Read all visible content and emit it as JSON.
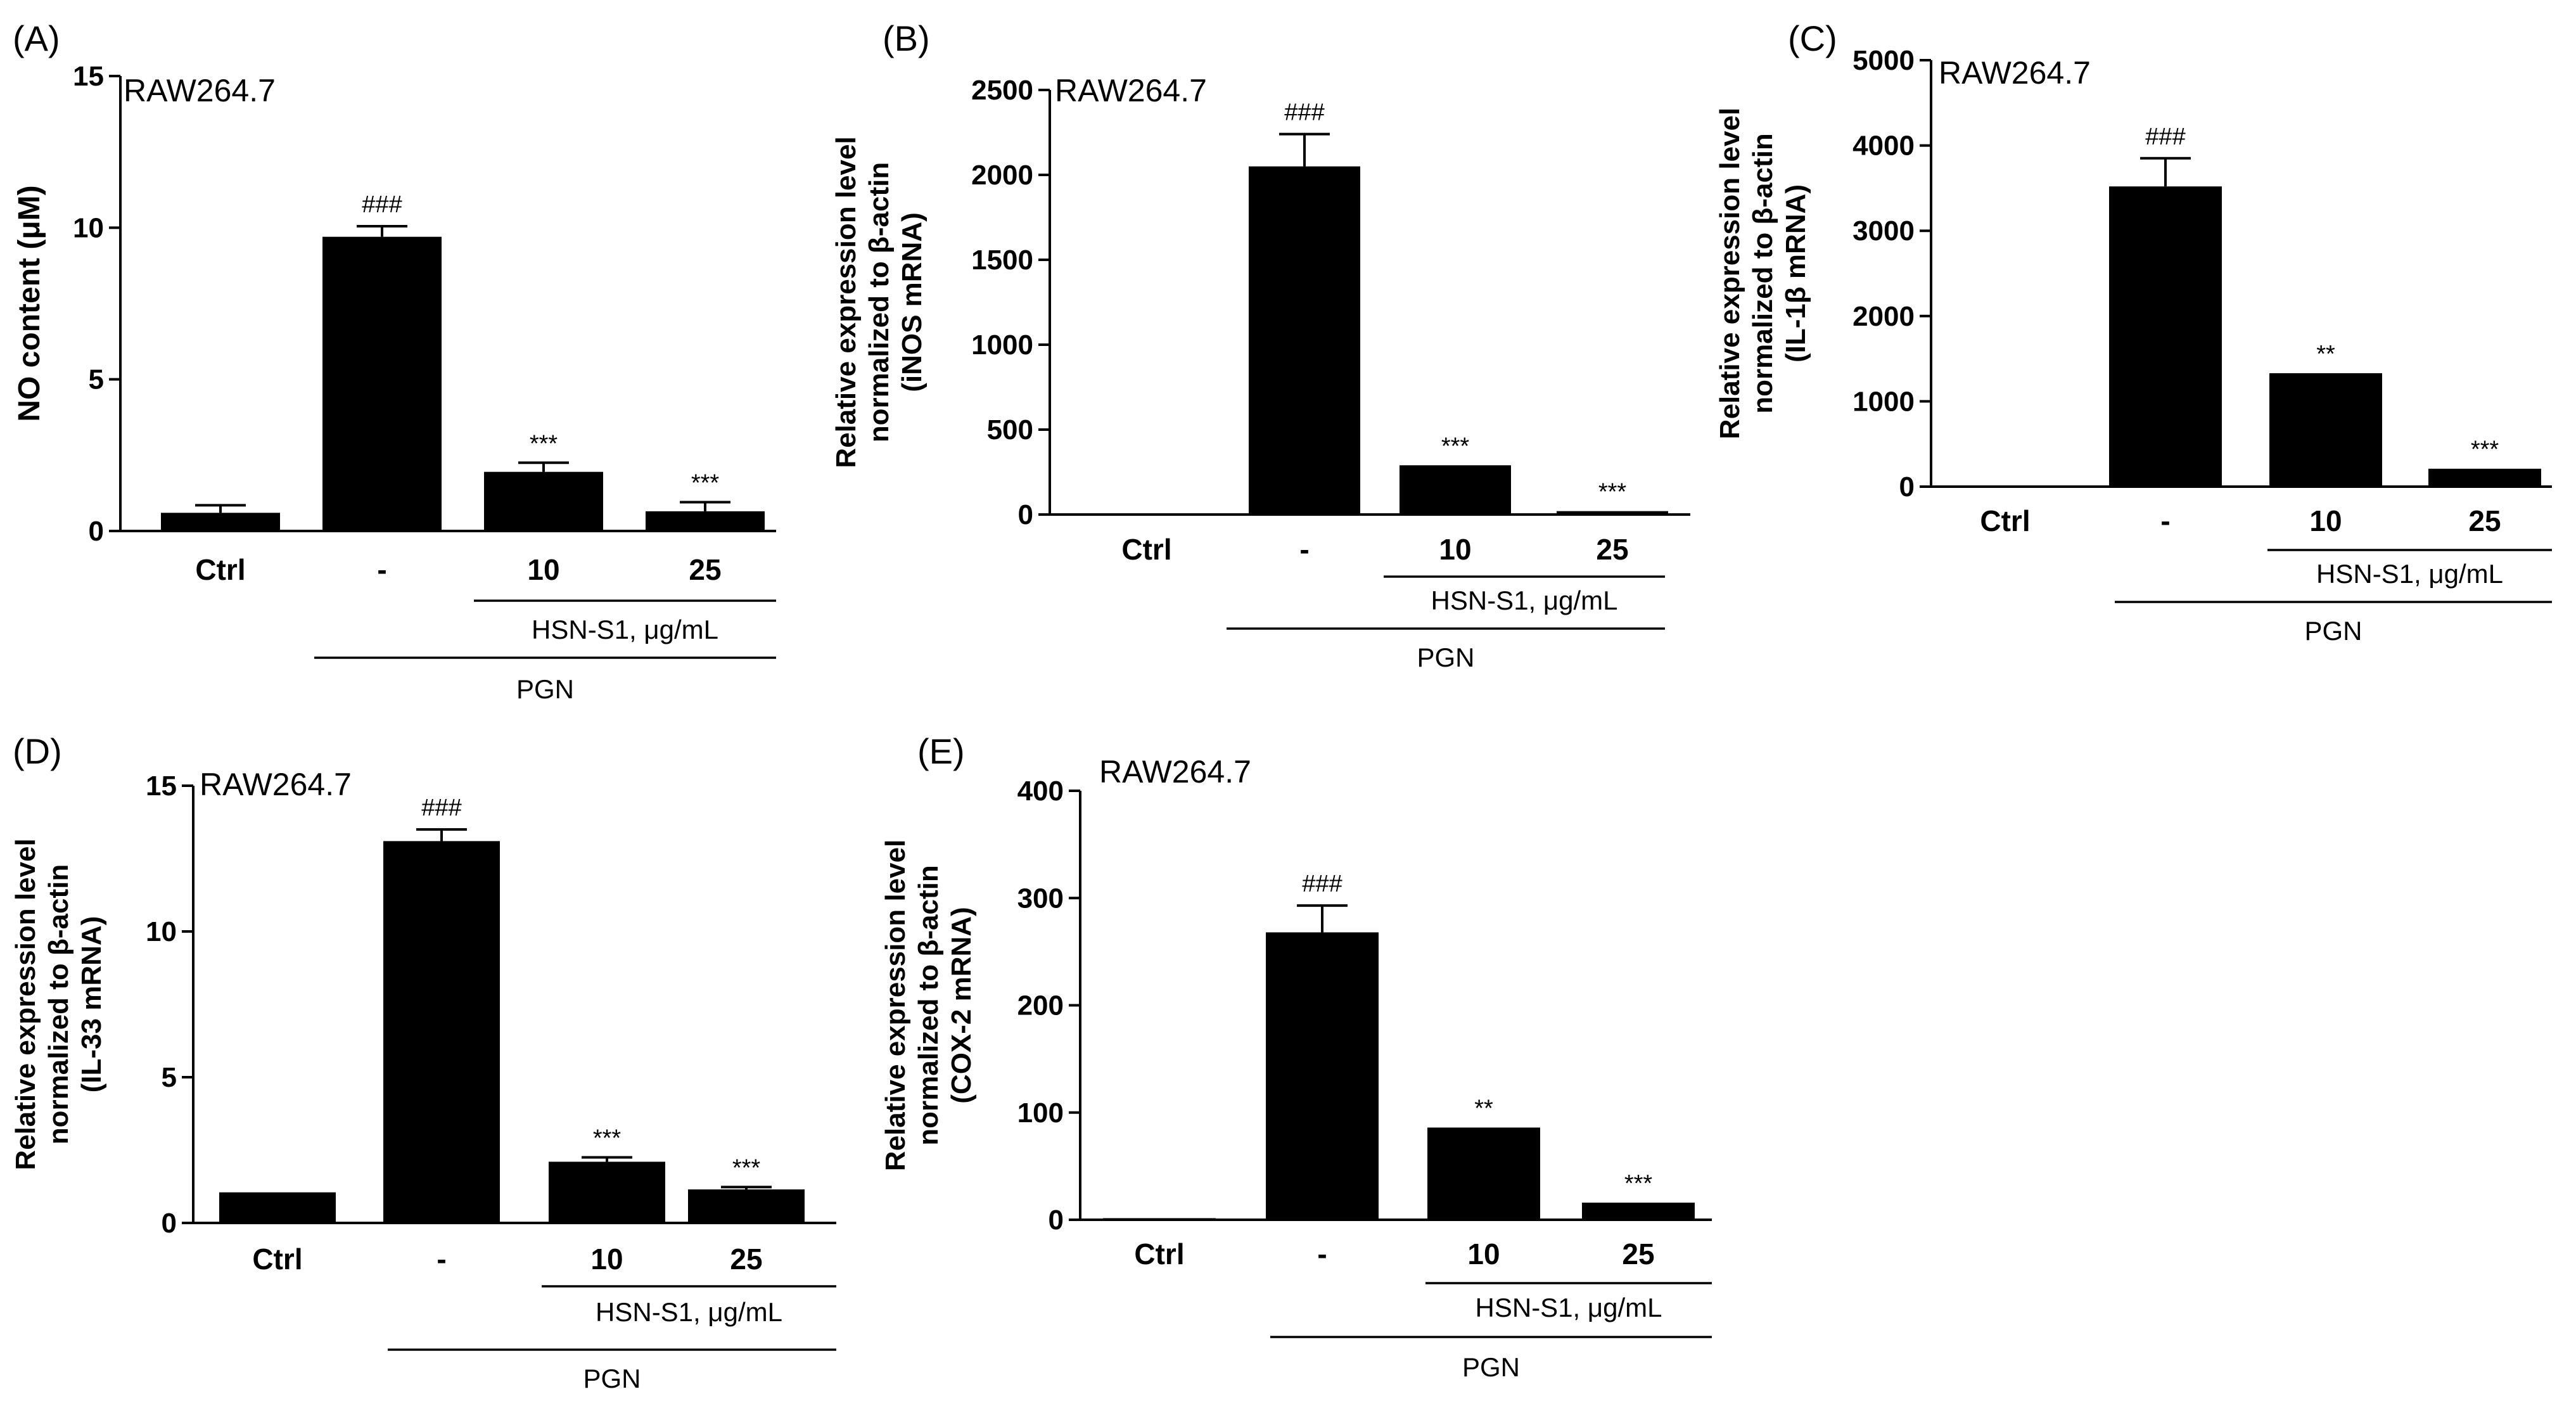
{
  "chart_data": [
    {
      "type": "bar",
      "panel": "(A)",
      "cell_line": "RAW264.7",
      "ylabel": "NO content (μM)",
      "ylim": [
        0,
        15
      ],
      "yticks": [
        "0",
        "5",
        "10",
        "15"
      ],
      "categories": [
        "Ctrl",
        "-",
        "10",
        "25"
      ],
      "values": [
        0.6,
        9.7,
        1.95,
        0.65
      ],
      "errors": [
        0.25,
        0.35,
        0.3,
        0.3
      ],
      "significance": [
        "",
        "###",
        "***",
        "***"
      ],
      "group_labels": {
        "treatment": "HSN-S1, μg/mL",
        "stimulus": "PGN"
      }
    },
    {
      "type": "bar",
      "panel": "(B)",
      "cell_line": "RAW264.7",
      "ylabel": [
        "Relative expression level",
        "normalized to β-actin",
        "(iNOS mRNA)"
      ],
      "ylim": [
        0,
        2500
      ],
      "yticks": [
        "0",
        "500",
        "1000",
        "1500",
        "2000",
        "2500"
      ],
      "categories": [
        "Ctrl",
        "-",
        "10",
        "25"
      ],
      "values": [
        1,
        2050,
        290,
        20
      ],
      "errors": [
        0,
        190,
        0,
        0
      ],
      "significance": [
        "",
        "###",
        "***",
        "***"
      ],
      "group_labels": {
        "treatment": "HSN-S1, μg/mL",
        "stimulus": "PGN"
      }
    },
    {
      "type": "bar",
      "panel": "(C)",
      "cell_line": "RAW264.7",
      "ylabel": [
        "Relative expression level",
        "normalized to β-actin",
        "(IL-1β mRNA)"
      ],
      "ylim": [
        0,
        5000
      ],
      "yticks": [
        "0",
        "1000",
        "2000",
        "3000",
        "4000",
        "5000"
      ],
      "categories": [
        "Ctrl",
        "-",
        "10",
        "25"
      ],
      "values": [
        1,
        3520,
        1330,
        210
      ],
      "errors": [
        0,
        330,
        0,
        0
      ],
      "significance": [
        "",
        "###",
        "**",
        "***"
      ],
      "group_labels": {
        "treatment": "HSN-S1, μg/mL",
        "stimulus": "PGN"
      }
    },
    {
      "type": "bar",
      "panel": "(D)",
      "cell_line": "RAW264.7",
      "ylabel": [
        "Relative expression level",
        "normalized to β-actin",
        "(IL-33 mRNA)"
      ],
      "ylim": [
        0,
        15
      ],
      "yticks": [
        "0",
        "5",
        "10",
        "15"
      ],
      "categories": [
        "Ctrl",
        "-",
        "10",
        "25"
      ],
      "values": [
        1.05,
        13.1,
        2.1,
        1.15
      ],
      "errors": [
        0,
        0.4,
        0.15,
        0.08
      ],
      "significance": [
        "",
        "###",
        "***",
        "***"
      ],
      "group_labels": {
        "treatment": "HSN-S1, μg/mL",
        "stimulus": "PGN"
      }
    },
    {
      "type": "bar",
      "panel": "(E)",
      "cell_line": "RAW264.7",
      "ylabel": [
        "Relative expression level",
        "normalized to β-actin",
        "(COX-2 mRNA)"
      ],
      "ylim": [
        0,
        400
      ],
      "yticks": [
        "0",
        "100",
        "200",
        "300",
        "400"
      ],
      "categories": [
        "Ctrl",
        "-",
        "10",
        "25"
      ],
      "values": [
        1.5,
        268,
        86,
        16
      ],
      "errors": [
        0,
        25,
        0,
        0
      ],
      "significance": [
        "",
        "###",
        "**",
        "***"
      ],
      "group_labels": {
        "treatment": "HSN-S1, μg/mL",
        "stimulus": "PGN"
      }
    }
  ]
}
